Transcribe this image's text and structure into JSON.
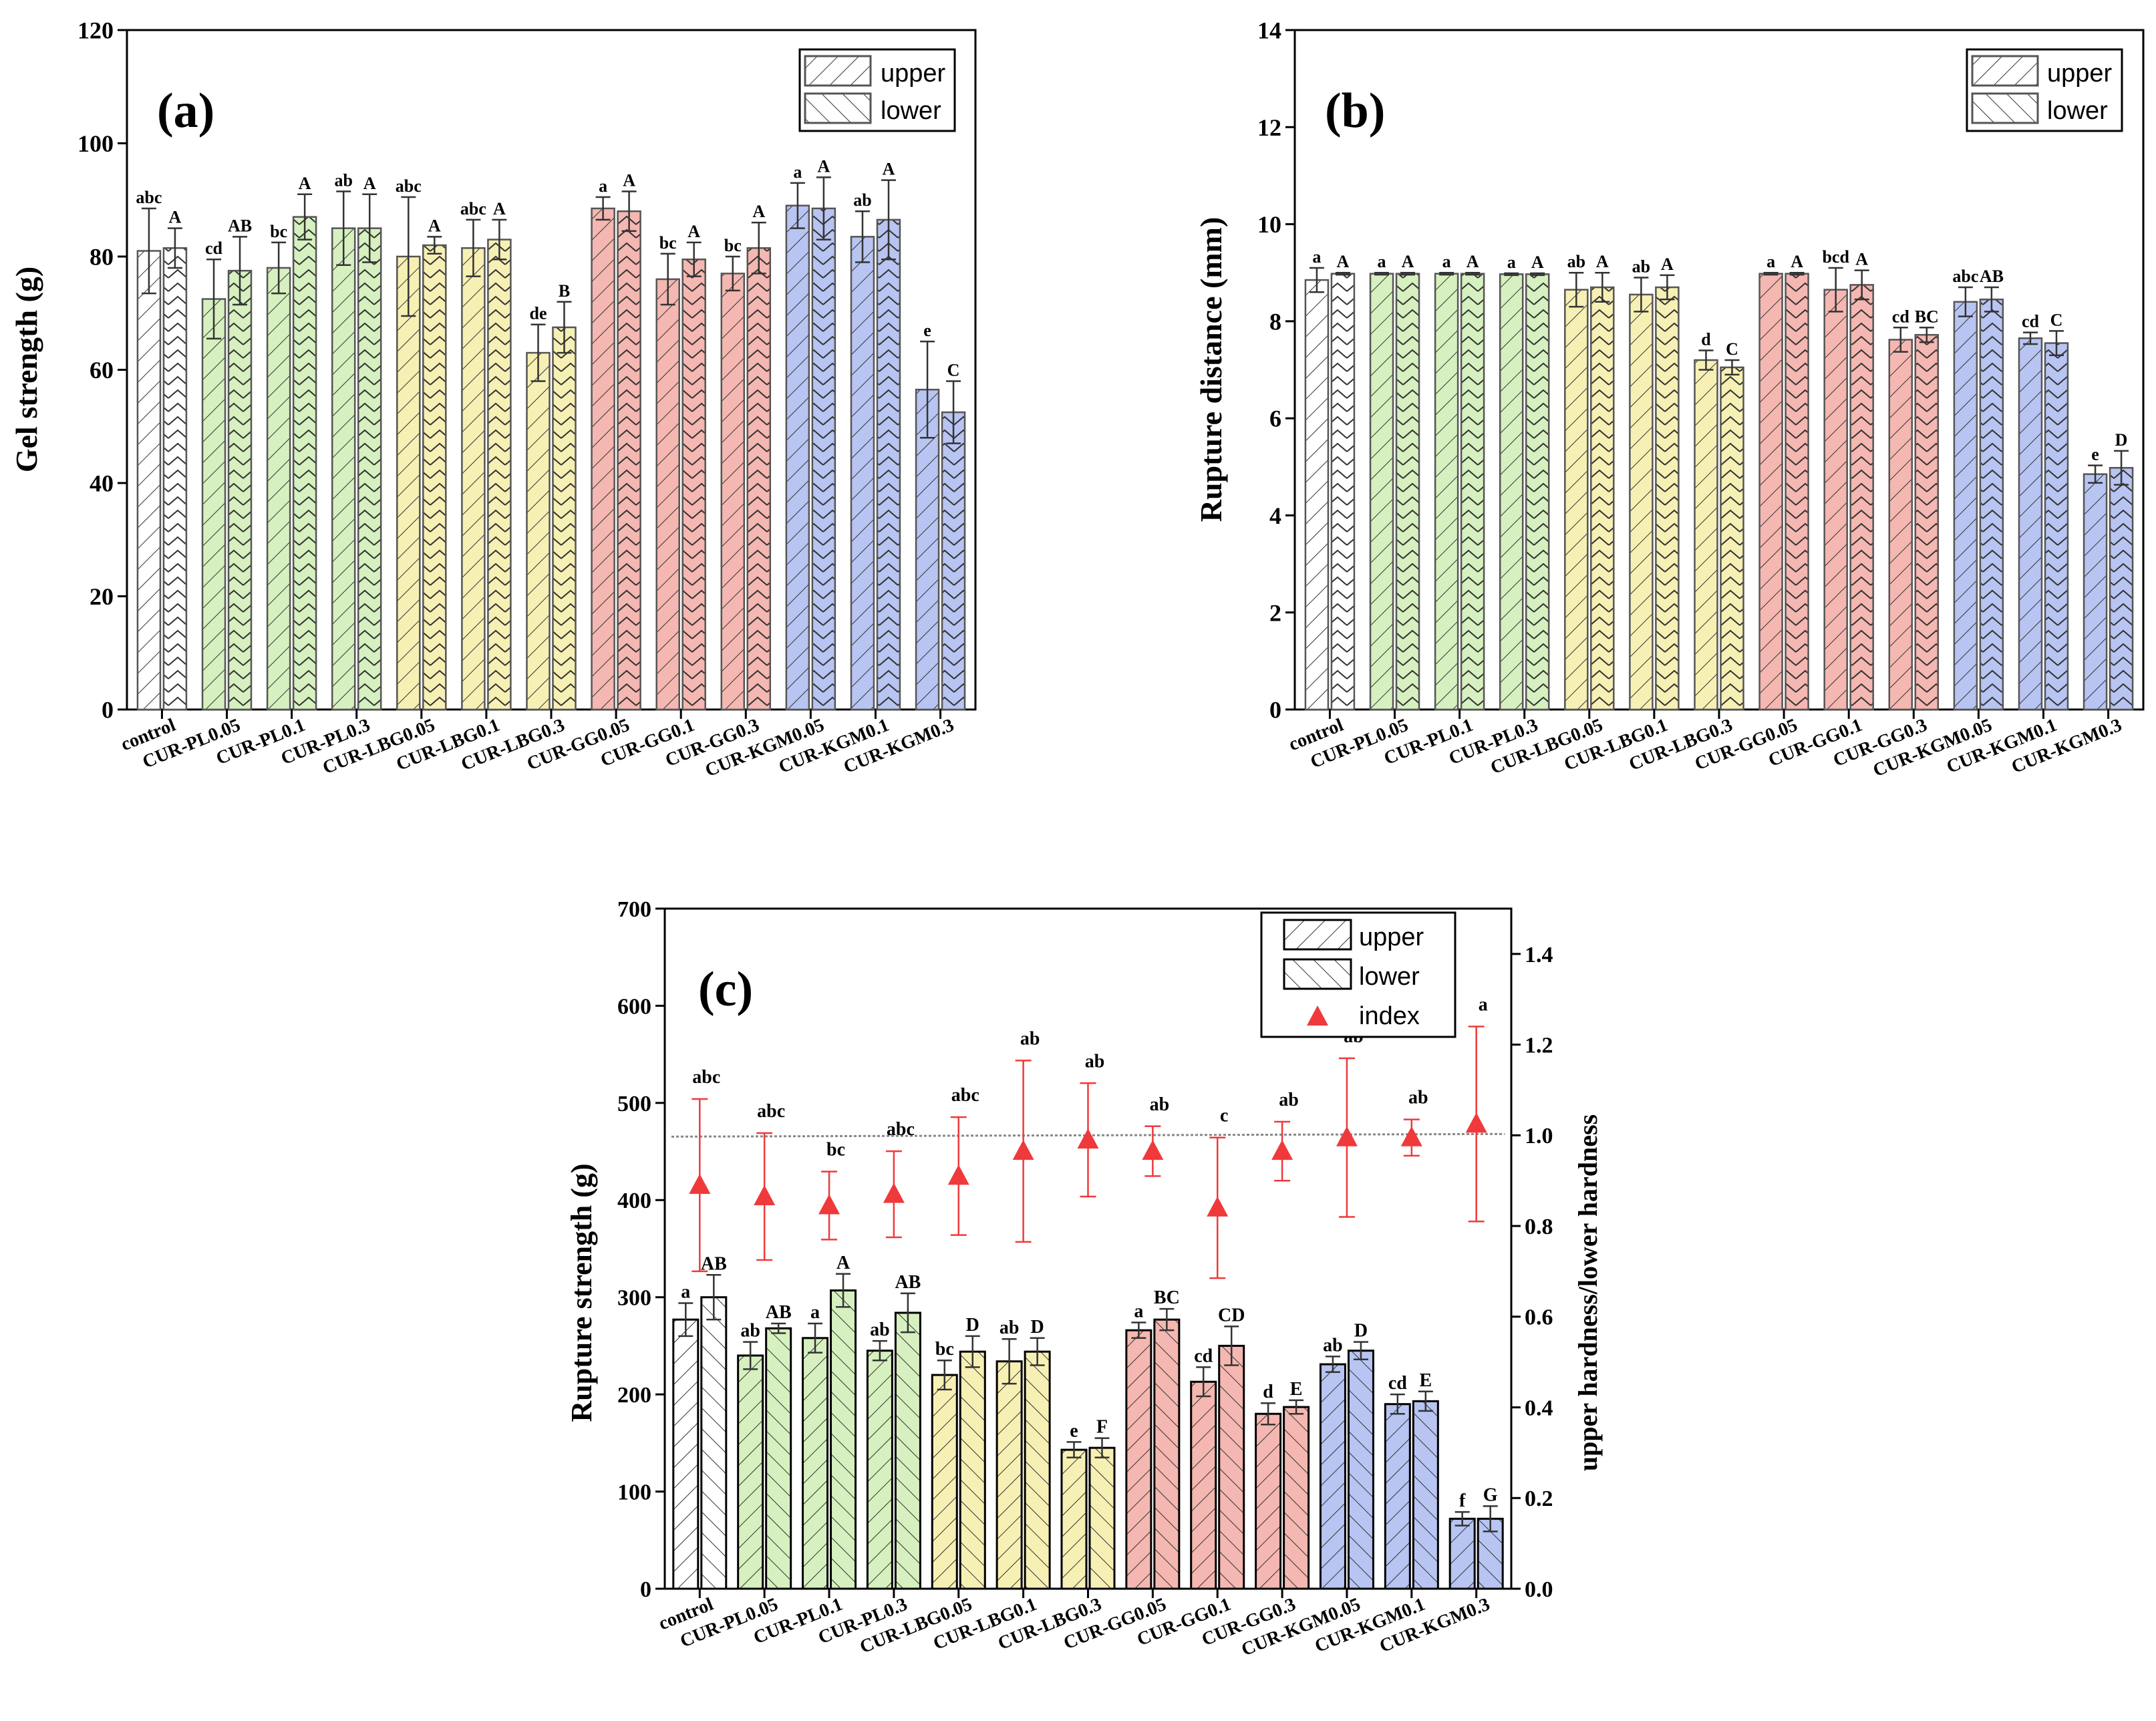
{
  "colors": {
    "control": "#ffffff",
    "PL": "#d6f0bf",
    "LBG": "#f7f0b4",
    "GG": "#f5b7b1",
    "KGM": "#b8c4f1",
    "index_marker": "#f0393b",
    "axis": "#000000",
    "bar_edge": "#555555"
  },
  "legend": {
    "upper": "upper",
    "lower": "lower",
    "index": "index"
  },
  "chart_data": [
    {
      "id": "a",
      "type": "bar",
      "panel_label": "(a)",
      "ylabel": "Gel strength (g)",
      "xlabel": "",
      "ylim": [
        0,
        120
      ],
      "yticks": [
        0,
        20,
        40,
        60,
        80,
        100,
        120
      ],
      "categories": [
        "control",
        "CUR-PL0.05",
        "CUR-PL0.1",
        "CUR-PL0.3",
        "CUR-LBG0.05",
        "CUR-LBG0.1",
        "CUR-LBG0.3",
        "CUR-GG0.05",
        "CUR-GG0.1",
        "CUR-GG0.3",
        "CUR-KGM0.05",
        "CUR-KGM0.1",
        "CUR-KGM0.3"
      ],
      "groups": [
        "control",
        "PL",
        "PL",
        "PL",
        "LBG",
        "LBG",
        "LBG",
        "GG",
        "GG",
        "GG",
        "KGM",
        "KGM",
        "KGM"
      ],
      "series": [
        {
          "name": "upper",
          "values": [
            81,
            72.5,
            78,
            85,
            80,
            81.5,
            63,
            88.5,
            76,
            77,
            89,
            83.5,
            56.5
          ],
          "errors": [
            7.5,
            7,
            4.5,
            6.5,
            10.5,
            5,
            5,
            2,
            4.5,
            3,
            4,
            4.5,
            8.5
          ],
          "letters": [
            "abc",
            "cd",
            "bc",
            "ab",
            "abc",
            "abc",
            "de",
            "a",
            "bc",
            "bc",
            "a",
            "ab",
            "e"
          ]
        },
        {
          "name": "lower",
          "values": [
            81.5,
            77.5,
            87,
            85,
            82,
            83,
            67.5,
            88,
            79.5,
            81.5,
            88.5,
            86.5,
            52.5
          ],
          "errors": [
            3.5,
            6,
            4,
            6,
            1.5,
            3.5,
            4.5,
            3.5,
            3,
            4.5,
            5.5,
            7,
            5.5
          ],
          "letters": [
            "A",
            "AB",
            "A",
            "A",
            "A",
            "A",
            "B",
            "A",
            "A",
            "A",
            "A",
            "A",
            "C"
          ]
        }
      ]
    },
    {
      "id": "b",
      "type": "bar",
      "panel_label": "(b)",
      "ylabel": "Rupture distance (mm)",
      "xlabel": "",
      "ylim": [
        0,
        14
      ],
      "yticks": [
        0,
        2,
        4,
        6,
        8,
        10,
        12,
        14
      ],
      "categories": [
        "control",
        "CUR-PL0.05",
        "CUR-PL0.1",
        "CUR-PL0.3",
        "CUR-LBG0.05",
        "CUR-LBG0.1",
        "CUR-LBG0.3",
        "CUR-GG0.05",
        "CUR-GG0.1",
        "CUR-GG0.3",
        "CUR-KGM0.05",
        "CUR-KGM0.1",
        "CUR-KGM0.3"
      ],
      "groups": [
        "control",
        "PL",
        "PL",
        "PL",
        "LBG",
        "LBG",
        "LBG",
        "GG",
        "GG",
        "GG",
        "KGM",
        "KGM",
        "KGM"
      ],
      "series": [
        {
          "name": "upper",
          "values": [
            8.85,
            8.98,
            8.98,
            8.97,
            8.65,
            8.55,
            7.2,
            8.98,
            8.65,
            7.62,
            8.4,
            7.65,
            4.85
          ],
          "errors": [
            0.25,
            0.02,
            0.02,
            0.02,
            0.35,
            0.35,
            0.2,
            0.02,
            0.45,
            0.25,
            0.3,
            0.12,
            0.18
          ],
          "letters": [
            "a",
            "a",
            "a",
            "a",
            "ab",
            "ab",
            "d",
            "a",
            "bcd",
            "cd",
            "abc",
            "cd",
            "e"
          ]
        },
        {
          "name": "lower",
          "values": [
            8.98,
            8.98,
            8.98,
            8.97,
            8.7,
            8.7,
            7.05,
            8.98,
            8.75,
            7.72,
            8.45,
            7.55,
            4.98
          ],
          "errors": [
            0.02,
            0.02,
            0.02,
            0.02,
            0.3,
            0.25,
            0.15,
            0.02,
            0.3,
            0.15,
            0.25,
            0.25,
            0.35
          ],
          "letters": [
            "A",
            "A",
            "A",
            "A",
            "A",
            "A",
            "C",
            "A",
            "A",
            "BC",
            "AB",
            "C",
            "D"
          ]
        }
      ]
    },
    {
      "id": "c",
      "type": "bar",
      "panel_label": "(c)",
      "ylabel": "Rupture strength (g)",
      "y2label": "upper hardness/lower hardness",
      "xlabel": "",
      "ylim": [
        0,
        700
      ],
      "yticks": [
        0,
        100,
        200,
        300,
        400,
        500,
        600,
        700
      ],
      "y2lim": [
        0,
        1.5
      ],
      "y2ticks": [
        "0.0",
        "0.2",
        "0.4",
        "0.6",
        "0.8",
        "1.0",
        "1.2",
        "1.4"
      ],
      "reference_line": 1.0,
      "categories": [
        "control",
        "CUR-PL0.05",
        "CUR-PL0.1",
        "CUR-PL0.3",
        "CUR-LBG0.05",
        "CUR-LBG0.1",
        "CUR-LBG0.3",
        "CUR-GG0.05",
        "CUR-GG0.1",
        "CUR-GG0.3",
        "CUR-KGM0.05",
        "CUR-KGM0.1",
        "CUR-KGM0.3"
      ],
      "groups": [
        "control",
        "PL",
        "PL",
        "PL",
        "LBG",
        "LBG",
        "LBG",
        "GG",
        "GG",
        "GG",
        "KGM",
        "KGM",
        "KGM"
      ],
      "series": [
        {
          "name": "upper",
          "values": [
            277,
            240,
            258,
            245,
            220,
            234,
            143,
            266,
            213,
            180,
            231,
            190,
            72
          ],
          "errors": [
            17,
            14,
            15,
            10,
            15,
            23,
            8,
            8,
            15,
            11,
            8,
            10,
            7
          ],
          "letters": [
            "a",
            "ab",
            "a",
            "ab",
            "bc",
            "ab",
            "e",
            "a",
            "cd",
            "d",
            "ab",
            "cd",
            "f"
          ]
        },
        {
          "name": "lower",
          "values": [
            300,
            268,
            307,
            284,
            244,
            244,
            145,
            277,
            250,
            187,
            245,
            193,
            72
          ],
          "errors": [
            23,
            5,
            17,
            20,
            16,
            14,
            10,
            11,
            20,
            7,
            9,
            10,
            13
          ],
          "letters": [
            "AB",
            "AB",
            "A",
            "AB",
            "D",
            "D",
            "F",
            "BC",
            "CD",
            "E",
            "D",
            "E",
            "G"
          ]
        }
      ],
      "index": {
        "name": "index",
        "values": [
          0.89,
          0.865,
          0.845,
          0.87,
          0.91,
          0.965,
          0.99,
          0.965,
          0.84,
          0.965,
          0.995,
          0.995,
          1.025
        ],
        "errors": [
          0.19,
          0.14,
          0.075,
          0.095,
          0.13,
          0.2,
          0.125,
          0.055,
          0.155,
          0.065,
          0.175,
          0.04,
          0.215
        ],
        "letters": [
          "abc",
          "abc",
          "bc",
          "abc",
          "abc",
          "ab",
          "ab",
          "ab",
          "c",
          "ab",
          "ab",
          "ab",
          "a"
        ]
      }
    }
  ]
}
